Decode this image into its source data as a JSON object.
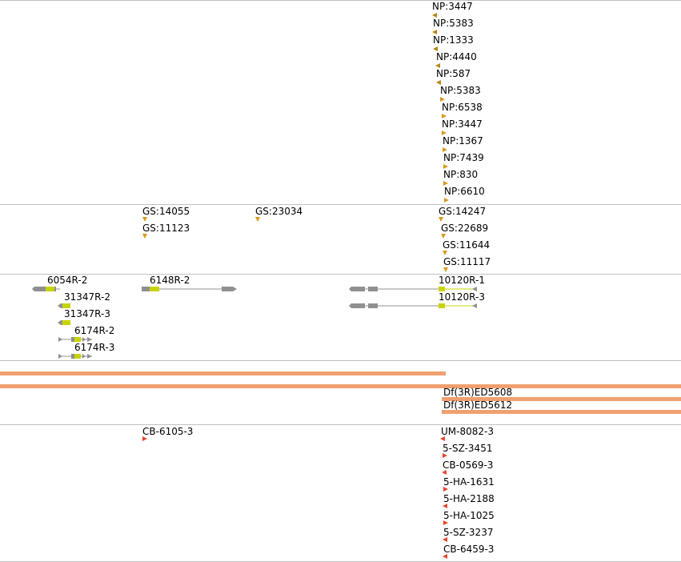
{
  "colors": {
    "divider": "#bfbfbf",
    "np_marker": "#d99a1c",
    "gs_marker": "#d99a1c",
    "deletion_bar": "#f0a070",
    "insertion_marker": "#e8452a",
    "gene_gray": "#909090",
    "gene_cds": "#c8d400"
  },
  "np_track": {
    "items": [
      {
        "label": "NP:3447"
      },
      {
        "label": "NP:5383"
      },
      {
        "label": "NP:1333"
      },
      {
        "label": "NP:4440"
      },
      {
        "label": "NP:587"
      },
      {
        "label": "NP:5383"
      },
      {
        "label": "NP:6538"
      },
      {
        "label": "NP:3447"
      },
      {
        "label": "NP:1367"
      },
      {
        "label": "NP:7439"
      },
      {
        "label": "NP:830"
      },
      {
        "label": "NP:6610"
      }
    ]
  },
  "gs_track": {
    "items": [
      {
        "label": "GS:14055"
      },
      {
        "label": "GS:11123"
      },
      {
        "label": "GS:23034"
      },
      {
        "label": "GS:14247"
      },
      {
        "label": "GS:22689"
      },
      {
        "label": "GS:11644"
      },
      {
        "label": "GS:11117"
      }
    ]
  },
  "gene_track": {
    "items": [
      {
        "label": "6054R-2"
      },
      {
        "label": "31347R-2"
      },
      {
        "label": "31347R-3"
      },
      {
        "label": "6174R-2"
      },
      {
        "label": "6174R-3"
      },
      {
        "label": "6148R-2"
      },
      {
        "label": "10120R-1"
      },
      {
        "label": "10120R-3"
      }
    ]
  },
  "deletion_track": {
    "items": [
      {
        "label": "Df(3R)ED5608"
      },
      {
        "label": "Df(3R)ED5612"
      }
    ]
  },
  "insertion_track": {
    "items": [
      {
        "label": "CB-6105-3"
      },
      {
        "label": "UM-8082-3"
      },
      {
        "label": "5-SZ-3451"
      },
      {
        "label": "CB-0569-3"
      },
      {
        "label": "5-HA-1631"
      },
      {
        "label": "5-HA-2188"
      },
      {
        "label": "5-HA-1025"
      },
      {
        "label": "5-SZ-3237"
      },
      {
        "label": "CB-6459-3"
      }
    ]
  }
}
